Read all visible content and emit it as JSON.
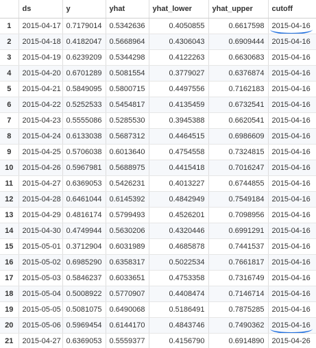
{
  "table": {
    "headers": [
      "",
      "ds",
      "y",
      "yhat",
      "yhat_lower",
      "yhat_upper",
      "cutoff"
    ],
    "rows": [
      [
        "1",
        "2015-04-17",
        "0.7179014",
        "0.5342636",
        "0.4050855",
        "0.6617598",
        "2015-04-16"
      ],
      [
        "2",
        "2015-04-18",
        "0.4182047",
        "0.5668964",
        "0.4306043",
        "0.6909444",
        "2015-04-16"
      ],
      [
        "3",
        "2015-04-19",
        "0.6239209",
        "0.5344298",
        "0.4122263",
        "0.6630683",
        "2015-04-16"
      ],
      [
        "4",
        "2015-04-20",
        "0.6701289",
        "0.5081554",
        "0.3779027",
        "0.6376874",
        "2015-04-16"
      ],
      [
        "5",
        "2015-04-21",
        "0.5849095",
        "0.5800715",
        "0.4497556",
        "0.7162183",
        "2015-04-16"
      ],
      [
        "6",
        "2015-04-22",
        "0.5252533",
        "0.5454817",
        "0.4135459",
        "0.6732541",
        "2015-04-16"
      ],
      [
        "7",
        "2015-04-23",
        "0.5555086",
        "0.5285530",
        "0.3945388",
        "0.6620541",
        "2015-04-16"
      ],
      [
        "8",
        "2015-04-24",
        "0.6133038",
        "0.5687312",
        "0.4464515",
        "0.6986609",
        "2015-04-16"
      ],
      [
        "9",
        "2015-04-25",
        "0.5706038",
        "0.6013640",
        "0.4754558",
        "0.7324815",
        "2015-04-16"
      ],
      [
        "10",
        "2015-04-26",
        "0.5967981",
        "0.5688975",
        "0.4415418",
        "0.7016247",
        "2015-04-16"
      ],
      [
        "11",
        "2015-04-27",
        "0.6369053",
        "0.5426231",
        "0.4013227",
        "0.6744855",
        "2015-04-16"
      ],
      [
        "12",
        "2015-04-28",
        "0.6461044",
        "0.6145392",
        "0.4842949",
        "0.7549184",
        "2015-04-16"
      ],
      [
        "13",
        "2015-04-29",
        "0.4816174",
        "0.5799493",
        "0.4526201",
        "0.7098956",
        "2015-04-16"
      ],
      [
        "14",
        "2015-04-30",
        "0.4749944",
        "0.5630206",
        "0.4320446",
        "0.6991291",
        "2015-04-16"
      ],
      [
        "15",
        "2015-05-01",
        "0.3712904",
        "0.6031989",
        "0.4685878",
        "0.7441537",
        "2015-04-16"
      ],
      [
        "16",
        "2015-05-02",
        "0.6985290",
        "0.6358317",
        "0.5022534",
        "0.7661817",
        "2015-04-16"
      ],
      [
        "17",
        "2015-05-03",
        "0.5846237",
        "0.6033651",
        "0.4753358",
        "0.7316749",
        "2015-04-16"
      ],
      [
        "18",
        "2015-05-04",
        "0.5008922",
        "0.5770907",
        "0.4408474",
        "0.7146714",
        "2015-04-16"
      ],
      [
        "19",
        "2015-05-05",
        "0.5081075",
        "0.6490068",
        "0.5186491",
        "0.7875285",
        "2015-04-16"
      ],
      [
        "20",
        "2015-05-06",
        "0.5969454",
        "0.6144170",
        "0.4843746",
        "0.7490362",
        "2015-04-16"
      ],
      [
        "21",
        "2015-04-27",
        "0.6369053",
        "0.5559377",
        "0.4156790",
        "0.6914890",
        "2015-04-26"
      ]
    ],
    "highlighted_rows": [
      1,
      20
    ]
  },
  "colors": {
    "highlight_underline": "#1f6fe0",
    "stripe": "#f6f8fb",
    "grid": "#dddddd"
  }
}
